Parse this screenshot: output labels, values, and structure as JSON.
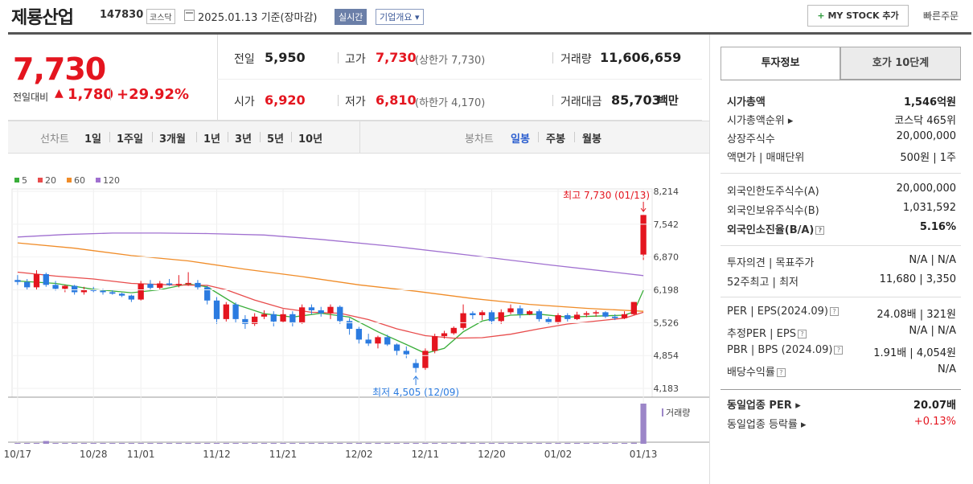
{
  "header": {
    "company_name": "제룡산업",
    "company_code": "147830",
    "market": "코스닥",
    "date": "2025.01.13  기준(장마감)",
    "realtime": "실시간",
    "overview": "기업개요 ▾",
    "my_stock": "MY STOCK 추가",
    "my_stock_plus": "+",
    "quick_order": "빠른주문"
  },
  "price": {
    "current": "7,730",
    "change_label": "전일대비",
    "change_amount": "1,780",
    "change_rate": "+29.92%",
    "prev_close_label": "전일",
    "prev_close": "5,950",
    "high_label": "고가",
    "high": "7,730",
    "upper_limit": "(상한가 7,730)",
    "volume_label": "거래량",
    "volume": "11,606,659",
    "open_label": "시가",
    "open": "6,920",
    "low_label": "저가",
    "low": "6,810",
    "lower_limit": "(하한가 4,170)",
    "trade_value_label": "거래대금",
    "trade_value": "85,703",
    "trade_value_unit": "백만"
  },
  "period_tabs": {
    "line_label": "선차트",
    "line_items": [
      "1일",
      "1주일",
      "3개월",
      "1년",
      "3년",
      "5년",
      "10년"
    ],
    "candle_label": "봉차트",
    "candle_items": [
      "일봉",
      "주봉",
      "월봉"
    ],
    "candle_active": "일봉"
  },
  "chart_data": {
    "type": "candlestick",
    "legend": [
      {
        "name": "5",
        "color": "#3aae3a"
      },
      {
        "name": "20",
        "color": "#e84c4c"
      },
      {
        "name": "60",
        "color": "#f08c28"
      },
      {
        "name": "120",
        "color": "#a070d0"
      }
    ],
    "y_ticks": [
      "8,214",
      "7,542",
      "6,870",
      "6,198",
      "5,526",
      "4,854",
      "4,183"
    ],
    "ylim": [
      4183,
      8214
    ],
    "x_ticks": [
      "10/17",
      "10/28",
      "11/01",
      "11/12",
      "11/21",
      "12/02",
      "12/11",
      "12/20",
      "01/02",
      "01/13"
    ],
    "x_tick_index": [
      0,
      8,
      13,
      21,
      28,
      36,
      43,
      50,
      57,
      66
    ],
    "high_annotation": "최고 7,730 (01/13)",
    "low_annotation": "최저 4,505 (12/09)",
    "volume_label": "거래량",
    "up_color": "#e4151f",
    "down_color": "#2b7be0",
    "candles": [
      [
        6400,
        6500,
        6300,
        6360
      ],
      [
        6360,
        6420,
        6200,
        6250
      ],
      [
        6250,
        6600,
        6200,
        6520
      ],
      [
        6520,
        6550,
        6260,
        6300
      ],
      [
        6300,
        6380,
        6180,
        6220
      ],
      [
        6220,
        6300,
        6150,
        6280
      ],
      [
        6280,
        6300,
        6100,
        6150
      ],
      [
        6150,
        6260,
        6100,
        6200
      ],
      [
        6200,
        6260,
        6150,
        6180
      ],
      [
        6180,
        6220,
        6100,
        6150
      ],
      [
        6150,
        6200,
        6100,
        6120
      ],
      [
        6120,
        6140,
        6050,
        6080
      ],
      [
        6080,
        6100,
        5950,
        6000
      ],
      [
        6000,
        6380,
        5980,
        6320
      ],
      [
        6320,
        6400,
        6200,
        6240
      ],
      [
        6240,
        6380,
        6200,
        6330
      ],
      [
        6330,
        6420,
        6280,
        6300
      ],
      [
        6300,
        6500,
        6250,
        6320
      ],
      [
        6320,
        6560,
        6280,
        6340
      ],
      [
        6340,
        6400,
        6200,
        6250
      ],
      [
        6250,
        6280,
        5900,
        5980
      ],
      [
        5980,
        6050,
        5500,
        5600
      ],
      [
        5600,
        5950,
        5550,
        5900
      ],
      [
        5900,
        5940,
        5520,
        5600
      ],
      [
        5600,
        5680,
        5400,
        5500
      ],
      [
        5500,
        5720,
        5460,
        5650
      ],
      [
        5650,
        5780,
        5600,
        5700
      ],
      [
        5700,
        5760,
        5450,
        5550
      ],
      [
        5550,
        5800,
        5520,
        5700
      ],
      [
        5700,
        5760,
        5450,
        5520
      ],
      [
        5520,
        5900,
        5500,
        5840
      ],
      [
        5840,
        5900,
        5700,
        5780
      ],
      [
        5780,
        5850,
        5650,
        5720
      ],
      [
        5720,
        5900,
        5600,
        5850
      ],
      [
        5850,
        5880,
        5500,
        5560
      ],
      [
        5560,
        5620,
        5280,
        5400
      ],
      [
        5400,
        5440,
        5100,
        5180
      ],
      [
        5180,
        5300,
        5050,
        5100
      ],
      [
        5100,
        5260,
        5000,
        5230
      ],
      [
        5230,
        5280,
        5050,
        5080
      ],
      [
        5080,
        5100,
        4850,
        4950
      ],
      [
        4950,
        5040,
        4800,
        4880
      ],
      [
        4700,
        4780,
        4505,
        4600
      ],
      [
        4600,
        5000,
        4560,
        4950
      ],
      [
        4950,
        5300,
        4900,
        5250
      ],
      [
        5250,
        5360,
        5200,
        5310
      ],
      [
        5310,
        5450,
        5280,
        5420
      ],
      [
        5420,
        5900,
        5380,
        5720
      ],
      [
        5720,
        5760,
        5600,
        5680
      ],
      [
        5680,
        5780,
        5580,
        5740
      ],
      [
        5740,
        5780,
        5500,
        5560
      ],
      [
        5560,
        5800,
        5500,
        5740
      ],
      [
        5740,
        5900,
        5700,
        5820
      ],
      [
        5820,
        5880,
        5620,
        5700
      ],
      [
        5700,
        5780,
        5680,
        5760
      ],
      [
        5760,
        5800,
        5550,
        5600
      ],
      [
        5600,
        5640,
        5500,
        5540
      ],
      [
        5540,
        5720,
        5500,
        5680
      ],
      [
        5680,
        5720,
        5550,
        5600
      ],
      [
        5600,
        5750,
        5580,
        5690
      ],
      [
        5690,
        5760,
        5640,
        5720
      ],
      [
        5720,
        5780,
        5650,
        5740
      ],
      [
        5740,
        5760,
        5620,
        5650
      ],
      [
        5650,
        5700,
        5580,
        5620
      ],
      [
        5620,
        5760,
        5600,
        5700
      ],
      [
        5700,
        5950,
        5680,
        5950
      ],
      [
        6920,
        7730,
        6810,
        7730
      ]
    ],
    "volumes": [
      1,
      1,
      1,
      7,
      1,
      1,
      0.5,
      0.5,
      1,
      2,
      1,
      1,
      1,
      1,
      1,
      1,
      1,
      1,
      1,
      1,
      1,
      1,
      1,
      1,
      0.5,
      1,
      1,
      1,
      1,
      1,
      1,
      1,
      1,
      1,
      1,
      1,
      1,
      1,
      1,
      1,
      1,
      1,
      1,
      1,
      1,
      1,
      1,
      2.5,
      1,
      1,
      1,
      1,
      1,
      1,
      1,
      1,
      1,
      1,
      1,
      1,
      1,
      1,
      1,
      1,
      1,
      2.5,
      100
    ],
    "ma": {
      "5": [
        [
          0,
          6380
        ],
        [
          4,
          6330
        ],
        [
          8,
          6210
        ],
        [
          12,
          6140
        ],
        [
          15,
          6200
        ],
        [
          18,
          6320
        ],
        [
          20,
          6260
        ],
        [
          23,
          5900
        ],
        [
          26,
          5710
        ],
        [
          29,
          5640
        ],
        [
          32,
          5720
        ],
        [
          35,
          5640
        ],
        [
          38,
          5340
        ],
        [
          41,
          5080
        ],
        [
          43,
          4900
        ],
        [
          45,
          5000
        ],
        [
          47,
          5340
        ],
        [
          49,
          5560
        ],
        [
          52,
          5680
        ],
        [
          55,
          5700
        ],
        [
          58,
          5640
        ],
        [
          61,
          5660
        ],
        [
          64,
          5680
        ],
        [
          65,
          5750
        ],
        [
          66,
          6190
        ]
      ],
      "20": [
        [
          0,
          6560
        ],
        [
          4,
          6480
        ],
        [
          8,
          6420
        ],
        [
          12,
          6330
        ],
        [
          16,
          6300
        ],
        [
          20,
          6290
        ],
        [
          22,
          6200
        ],
        [
          25,
          5990
        ],
        [
          28,
          5820
        ],
        [
          31,
          5740
        ],
        [
          34,
          5720
        ],
        [
          37,
          5590
        ],
        [
          40,
          5400
        ],
        [
          43,
          5260
        ],
        [
          46,
          5210
        ],
        [
          49,
          5220
        ],
        [
          52,
          5290
        ],
        [
          55,
          5400
        ],
        [
          58,
          5500
        ],
        [
          62,
          5580
        ],
        [
          64,
          5620
        ],
        [
          66,
          5740
        ]
      ],
      "60": [
        [
          0,
          7160
        ],
        [
          6,
          7050
        ],
        [
          12,
          6900
        ],
        [
          18,
          6790
        ],
        [
          24,
          6620
        ],
        [
          30,
          6470
        ],
        [
          36,
          6300
        ],
        [
          42,
          6170
        ],
        [
          48,
          6020
        ],
        [
          54,
          5900
        ],
        [
          60,
          5820
        ],
        [
          66,
          5760
        ]
      ],
      "120": [
        [
          0,
          7280
        ],
        [
          5,
          7330
        ],
        [
          10,
          7360
        ],
        [
          15,
          7360
        ],
        [
          20,
          7350
        ],
        [
          26,
          7320
        ],
        [
          32,
          7230
        ],
        [
          40,
          7080
        ],
        [
          48,
          6900
        ],
        [
          56,
          6710
        ],
        [
          62,
          6580
        ],
        [
          66,
          6490
        ]
      ]
    }
  },
  "right_panel": {
    "tab_invest": "투자정보",
    "tab_orderbook": "호가 10단계",
    "rows": {
      "market_cap": {
        "label": "시가총액",
        "value": "1,546억원"
      },
      "market_cap_rank": {
        "label": "시가총액순위 ▸",
        "value": "코스닥 465위"
      },
      "shares": {
        "label": "상장주식수",
        "value": "20,000,000"
      },
      "face_value": {
        "label": "액면가 | 매매단위",
        "value": "500원 | 1주"
      },
      "foreign_limit": {
        "label": "외국인한도주식수(A)",
        "value": "20,000,000"
      },
      "foreign_hold": {
        "label": "외국인보유주식수(B)",
        "value": "1,031,592"
      },
      "foreign_ratio": {
        "label": "외국인소진율(B/A)",
        "value": "5.16%"
      },
      "opinion": {
        "label": "투자의견 | 목표주가",
        "value": "N/A | N/A"
      },
      "week52": {
        "label": "52주최고 | 최저",
        "value": "11,680 | 3,350"
      },
      "per_eps": {
        "label": "PER | EPS(2024.09)",
        "value": "24.08배 | 321원"
      },
      "est_per": {
        "label": "추정PER | EPS",
        "value": "N/A | N/A"
      },
      "pbr_bps": {
        "label": "PBR | BPS (2024.09)",
        "value": "1.91배 | 4,054원"
      },
      "dividend": {
        "label": "배당수익률",
        "value": "N/A"
      },
      "ind_per": {
        "label": "동일업종 PER ▸",
        "value": "20.07배"
      },
      "ind_rate": {
        "label": "동일업종 등락률 ▸",
        "value": "+0.13%"
      }
    },
    "help_mark": "?",
    "accent_red": "#e4151f"
  }
}
